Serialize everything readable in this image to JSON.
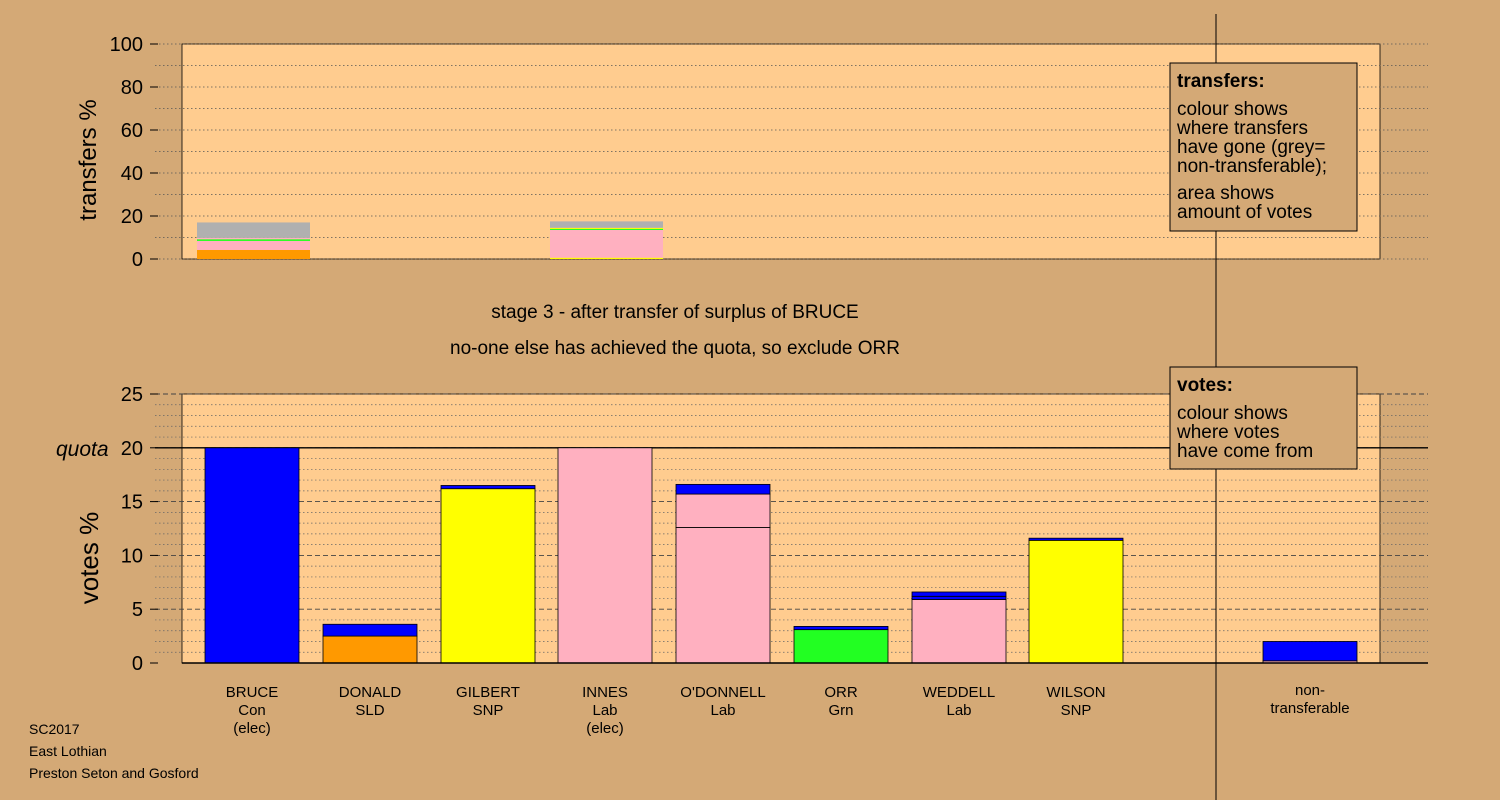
{
  "colors": {
    "background": "#d4a976",
    "plot_bg": "#ffcc8f",
    "Con": "#0000ff",
    "SLD": "#ff9900",
    "SNP": "#ffff00",
    "Lab": "#ffb0c0",
    "Grn": "#22ff22",
    "nontransferable": "#b0b0b0"
  },
  "headings": {
    "stage": "stage 3 - after transfer of surplus of BRUCE",
    "note": "no-one else has achieved the quota, so exclude ORR"
  },
  "footer": [
    "SC2017",
    "East Lothian",
    "Preston Seton and Gosford"
  ],
  "legends": {
    "transfers": {
      "title": "transfers:",
      "lines1": [
        "colour shows",
        "where transfers",
        "have gone (grey=",
        "non-transferable);"
      ],
      "lines2": [
        "area shows",
        "amount of votes"
      ]
    },
    "votes": {
      "title": "votes:",
      "lines1": [
        "colour shows",
        "where votes",
        "have come from"
      ]
    }
  },
  "chart_data": [
    {
      "id": "transfers",
      "type": "bar",
      "ylabel": "transfers %",
      "ylim": [
        0,
        100
      ],
      "yticks": [
        0,
        20,
        40,
        60,
        80,
        100
      ],
      "grid": true,
      "bars": [
        {
          "slot": 0,
          "segments": [
            {
              "party": "SLD",
              "value": 4.2
            },
            {
              "party": "Lab",
              "value": 4.2
            },
            {
              "party": "Grn",
              "value": 0.8
            },
            {
              "party": "Lab",
              "value": 0.6
            },
            {
              "party": "nontransferable",
              "value": 7.2
            }
          ]
        },
        {
          "slot": 3,
          "segments": [
            {
              "party": "SNP",
              "value": 0.6
            },
            {
              "party": "Lab",
              "value": 10.3
            },
            {
              "party": "Lab",
              "value": 2.6
            },
            {
              "party": "Grn",
              "value": 0.5
            },
            {
              "party": "SNP",
              "value": 0.5
            },
            {
              "party": "nontransferable",
              "value": 3.0
            }
          ]
        }
      ]
    },
    {
      "id": "votes",
      "type": "bar",
      "ylabel": "votes %",
      "ylim": [
        0,
        25
      ],
      "yticks": [
        0,
        5,
        10,
        15,
        20,
        25
      ],
      "quota": 20,
      "quota_label": "quota",
      "grid": true,
      "categories": [
        {
          "name": "BRUCE",
          "party": "Con",
          "note": "(elec)"
        },
        {
          "name": "DONALD",
          "party": "SLD",
          "note": ""
        },
        {
          "name": "GILBERT",
          "party": "SNP",
          "note": ""
        },
        {
          "name": "INNES",
          "party": "Lab",
          "note": "(elec)"
        },
        {
          "name": "O'DONNELL",
          "party": "Lab",
          "note": ""
        },
        {
          "name": "ORR",
          "party": "Grn",
          "note": ""
        },
        {
          "name": "WEDDELL",
          "party": "Lab",
          "note": ""
        },
        {
          "name": "WILSON",
          "party": "SNP",
          "note": ""
        }
      ],
      "nontransferable_label": [
        "non-",
        "transferable"
      ],
      "bars": [
        {
          "segments": [
            {
              "party": "Con",
              "value": 20.0
            }
          ]
        },
        {
          "segments": [
            {
              "party": "SLD",
              "value": 2.5
            },
            {
              "party": "Con",
              "value": 1.1
            }
          ]
        },
        {
          "segments": [
            {
              "party": "SNP",
              "value": 16.2
            },
            {
              "party": "Con",
              "value": 0.3
            }
          ]
        },
        {
          "segments": [
            {
              "party": "Lab",
              "value": 20.0
            }
          ]
        },
        {
          "segments": [
            {
              "party": "Lab",
              "value": 12.6
            },
            {
              "party": "Lab",
              "value": 3.1
            },
            {
              "party": "Con",
              "value": 0.9
            }
          ]
        },
        {
          "segments": [
            {
              "party": "Grn",
              "value": 3.1
            },
            {
              "party": "Con",
              "value": 0.3
            }
          ]
        },
        {
          "segments": [
            {
              "party": "Lab",
              "value": 5.9
            },
            {
              "party": "Con",
              "value": 0.3
            },
            {
              "party": "Con",
              "value": 0.4
            }
          ]
        },
        {
          "segments": [
            {
              "party": "SNP",
              "value": 11.4
            },
            {
              "party": "Con",
              "value": 0.2
            }
          ]
        }
      ],
      "nontransferable_bar": {
        "segments": [
          {
            "party": "Lab",
            "value": 0.2
          },
          {
            "party": "Con",
            "value": 1.8
          }
        ]
      }
    }
  ]
}
